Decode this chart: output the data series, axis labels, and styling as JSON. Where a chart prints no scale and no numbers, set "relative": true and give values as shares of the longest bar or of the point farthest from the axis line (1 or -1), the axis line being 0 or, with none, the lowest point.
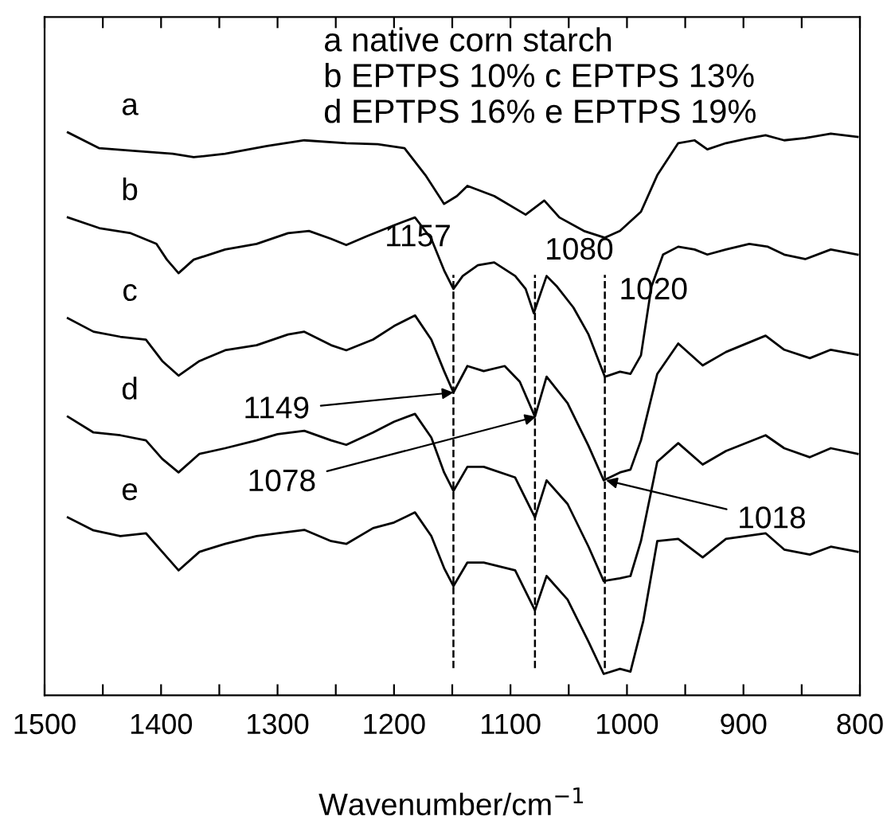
{
  "chart_data": {
    "type": "line",
    "relative": true,
    "xlabel": "Wavenumber/cm$^{−1}$",
    "xlim": [
      1500,
      800
    ],
    "xticks": [
      1500,
      {
        "value": 1450,
        "label": null
      },
      1400,
      {
        "value": 1350,
        "label": null
      },
      1300,
      {
        "value": 1250,
        "label": null
      },
      1200,
      {
        "value": 1150,
        "label": null
      },
      1100,
      {
        "value": 1050,
        "label": null
      },
      1000,
      {
        "value": 950,
        "label": null
      },
      900,
      {
        "value": 850,
        "label": null
      },
      800
    ],
    "tick_labels": "x",
    "grid": false,
    "legend": false,
    "marker": "none",
    "line_style": "solid",
    "series": [
      {
        "name": "a",
        "color": "#000000",
        "x": [
          1480,
          1453,
          1422,
          1390,
          1372,
          1345,
          1309,
          1277,
          1241,
          1214,
          1191,
          1173,
          1157,
          1146,
          1137,
          1114,
          1087,
          1071,
          1058,
          1037,
          1019,
          1006,
          988,
          974,
          956,
          942,
          931,
          915,
          897,
          881,
          865,
          847,
          825,
          802
        ],
        "values": [
          1.0,
          0.972,
          0.967,
          0.962,
          0.956,
          0.962,
          0.976,
          0.986,
          0.981,
          0.979,
          0.972,
          0.924,
          0.873,
          0.887,
          0.905,
          0.887,
          0.854,
          0.879,
          0.849,
          0.825,
          0.813,
          0.825,
          0.859,
          0.924,
          0.981,
          0.986,
          0.97,
          0.981,
          0.989,
          0.995,
          0.986,
          0.99,
          0.998,
          0.992
        ]
      },
      {
        "name": "b",
        "color": "#000000",
        "x": [
          1480,
          1453,
          1426,
          1404,
          1395,
          1385,
          1372,
          1345,
          1318,
          1291,
          1273,
          1254,
          1241,
          1223,
          1200,
          1182,
          1168,
          1157,
          1149,
          1141,
          1128,
          1114,
          1096,
          1087,
          1080,
          1069,
          1060,
          1046,
          1033,
          1019,
          1006,
          997,
          988,
          979,
          969,
          956,
          942,
          931,
          915,
          895,
          879,
          865,
          847,
          825,
          802
        ],
        "values": [
          0.849,
          0.83,
          0.821,
          0.802,
          0.774,
          0.75,
          0.774,
          0.792,
          0.802,
          0.821,
          0.825,
          0.811,
          0.8,
          0.816,
          0.835,
          0.849,
          0.811,
          0.755,
          0.722,
          0.745,
          0.764,
          0.769,
          0.745,
          0.722,
          0.679,
          0.745,
          0.726,
          0.689,
          0.641,
          0.566,
          0.575,
          0.571,
          0.604,
          0.726,
          0.783,
          0.797,
          0.792,
          0.783,
          0.792,
          0.802,
          0.797,
          0.783,
          0.775,
          0.792,
          0.783
        ]
      },
      {
        "name": "c",
        "color": "#000000",
        "x": [
          1480,
          1458,
          1435,
          1413,
          1399,
          1385,
          1367,
          1345,
          1318,
          1291,
          1277,
          1254,
          1241,
          1218,
          1200,
          1182,
          1168,
          1157,
          1149,
          1137,
          1123,
          1105,
          1092,
          1079,
          1069,
          1051,
          1033,
          1020,
          1006,
          997,
          988,
          974,
          956,
          935,
          915,
          881,
          865,
          843,
          825,
          802
        ],
        "values": [
          0.67,
          0.646,
          0.637,
          0.632,
          0.594,
          0.568,
          0.594,
          0.613,
          0.622,
          0.641,
          0.646,
          0.622,
          0.613,
          0.632,
          0.656,
          0.675,
          0.632,
          0.576,
          0.538,
          0.585,
          0.576,
          0.585,
          0.557,
          0.495,
          0.566,
          0.519,
          0.443,
          0.382,
          0.396,
          0.401,
          0.453,
          0.571,
          0.625,
          0.586,
          0.61,
          0.639,
          0.614,
          0.599,
          0.614,
          0.605
        ]
      },
      {
        "name": "d",
        "color": "#000000",
        "x": [
          1480,
          1458,
          1435,
          1413,
          1399,
          1385,
          1367,
          1345,
          1318,
          1300,
          1277,
          1254,
          1241,
          1218,
          1200,
          1182,
          1168,
          1157,
          1149,
          1137,
          1123,
          1096,
          1079,
          1069,
          1051,
          1033,
          1020,
          1006,
          997,
          988,
          974,
          956,
          935,
          915,
          881,
          865,
          843,
          825,
          802
        ],
        "values": [
          0.495,
          0.467,
          0.462,
          0.453,
          0.42,
          0.396,
          0.429,
          0.439,
          0.453,
          0.464,
          0.47,
          0.453,
          0.445,
          0.467,
          0.486,
          0.5,
          0.458,
          0.396,
          0.363,
          0.406,
          0.406,
          0.387,
          0.316,
          0.382,
          0.34,
          0.264,
          0.203,
          0.208,
          0.212,
          0.274,
          0.415,
          0.448,
          0.41,
          0.434,
          0.462,
          0.439,
          0.423,
          0.439,
          0.429
        ]
      },
      {
        "name": "e",
        "color": "#000000",
        "x": [
          1480,
          1458,
          1435,
          1413,
          1399,
          1385,
          1367,
          1345,
          1318,
          1300,
          1277,
          1254,
          1241,
          1218,
          1200,
          1182,
          1168,
          1157,
          1149,
          1137,
          1123,
          1096,
          1079,
          1069,
          1051,
          1033,
          1020,
          1006,
          997,
          986,
          974,
          956,
          935,
          915,
          881,
          865,
          843,
          825,
          802
        ],
        "values": [
          0.316,
          0.293,
          0.283,
          0.288,
          0.255,
          0.222,
          0.255,
          0.269,
          0.283,
          0.288,
          0.294,
          0.274,
          0.269,
          0.297,
          0.307,
          0.325,
          0.283,
          0.226,
          0.194,
          0.236,
          0.236,
          0.222,
          0.151,
          0.212,
          0.17,
          0.095,
          0.038,
          0.047,
          0.042,
          0.132,
          0.274,
          0.278,
          0.245,
          0.278,
          0.288,
          0.259,
          0.25,
          0.264,
          0.255
        ]
      }
    ],
    "ref_lines": [
      {
        "axis": "x",
        "value": 1149,
        "color": "#000000",
        "line_style": "dashed"
      },
      {
        "axis": "x",
        "value": 1079,
        "color": "#000000",
        "line_style": "dashed"
      },
      {
        "axis": "x",
        "value": 1019,
        "color": "#000000",
        "line_style": "dashed"
      }
    ],
    "annotations": [
      "a native corn starch\nb EPTPS 10% c EPTPS 13%\nd EPTPS 16% e EPTPS 19%",
      "1157",
      "1080",
      "1020",
      {
        "text": "1149",
        "x": 1149,
        "y": 0.538
      },
      {
        "text": "1078",
        "x": 1078,
        "y": 0.495
      },
      {
        "text": "1018",
        "x": 1018,
        "y": 0.382
      }
    ]
  }
}
